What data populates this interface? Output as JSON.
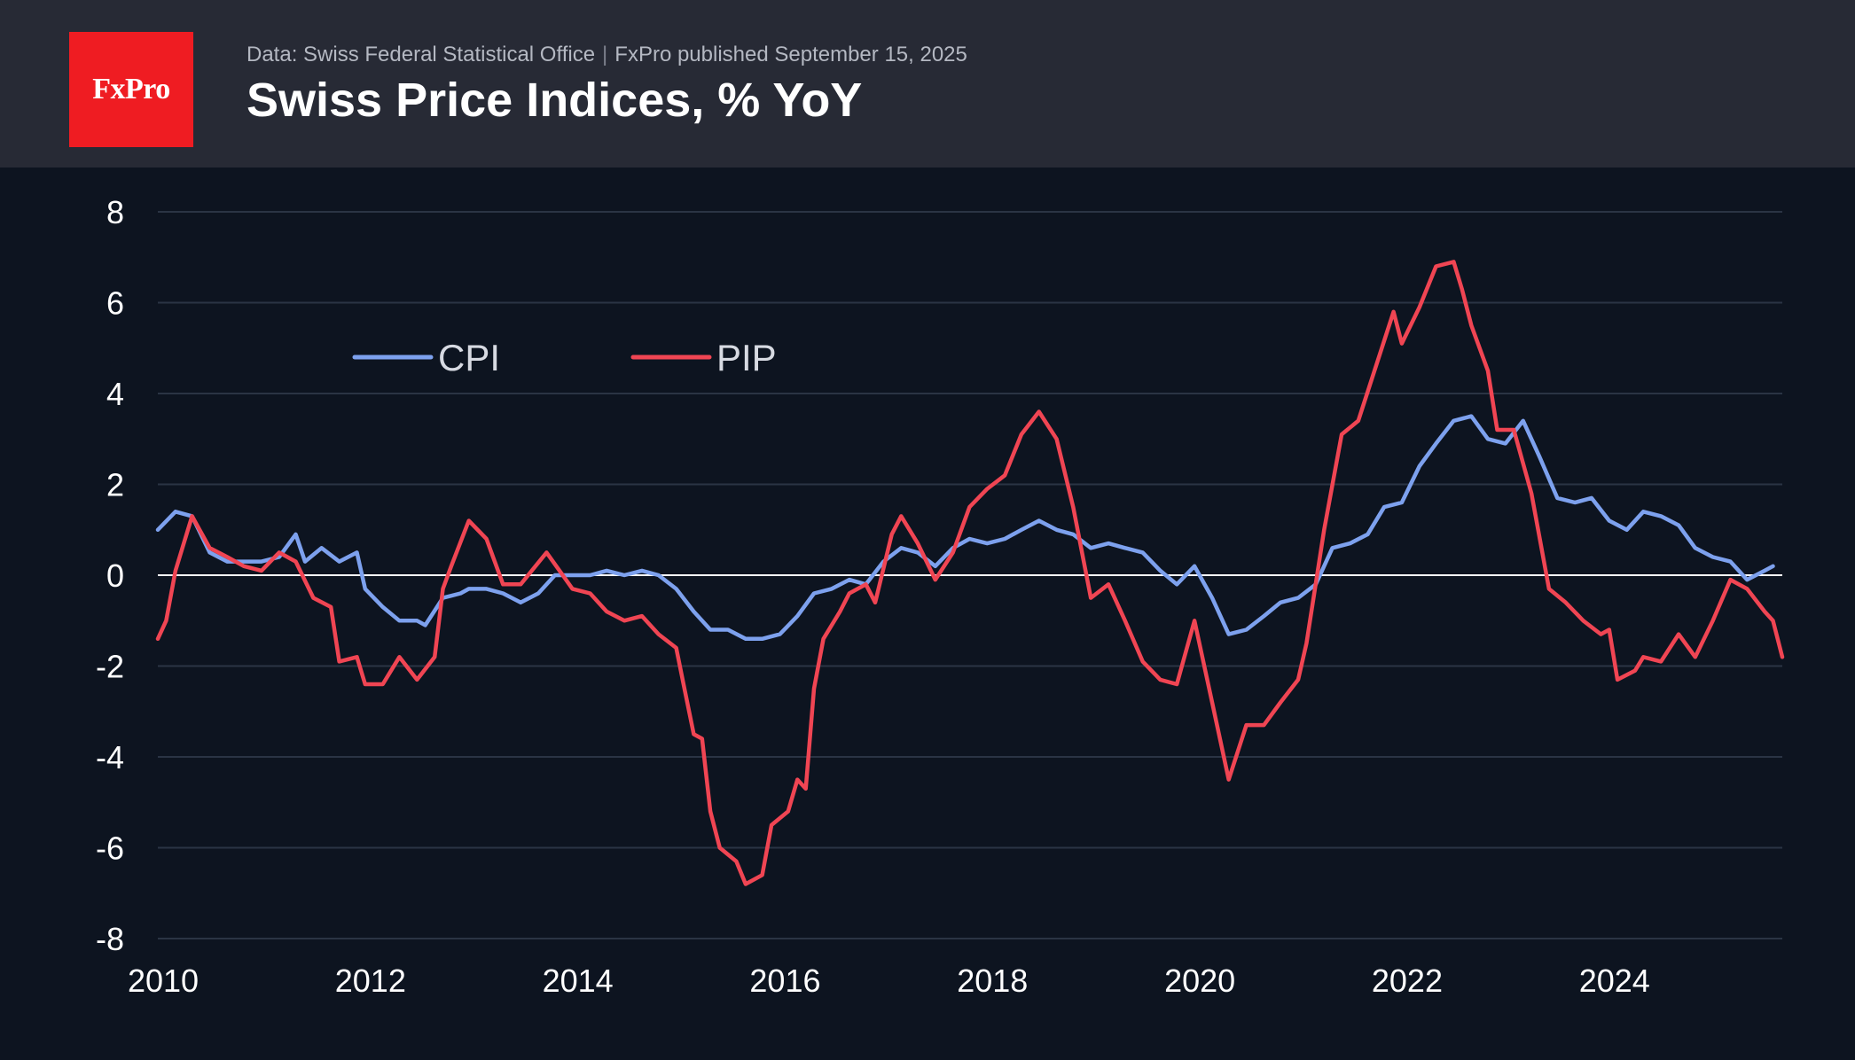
{
  "brand": {
    "logo_text": "FxPro",
    "accent": "#ef1c22"
  },
  "header": {
    "source": "Data: Swiss Federal Statistical Office",
    "separator": "|",
    "published": "FxPro published September 15, 2025",
    "title": "Swiss Price Indices, % YoY"
  },
  "chart_data": {
    "type": "line",
    "title": "Swiss Price Indices, % YoY",
    "xlabel": "",
    "ylabel": "",
    "xlim": [
      2010.0,
      2025.67
    ],
    "ylim": [
      -8,
      8
    ],
    "x_ticks": [
      "2010",
      "2012",
      "2014",
      "2016",
      "2018",
      "2020",
      "2022",
      "2024"
    ],
    "y_ticks": [
      "8",
      "6",
      "4",
      "2",
      "0",
      "-2",
      "-4",
      "-6",
      "-8"
    ],
    "grid": true,
    "zero_line": true,
    "legend_position": "top-left",
    "series": [
      {
        "name": "CPI",
        "color": "#7da1ee",
        "points": [
          [
            2010.0,
            1.0
          ],
          [
            2010.17,
            1.4
          ],
          [
            2010.33,
            1.3
          ],
          [
            2010.5,
            0.5
          ],
          [
            2010.67,
            0.3
          ],
          [
            2010.83,
            0.3
          ],
          [
            2011.0,
            0.3
          ],
          [
            2011.17,
            0.4
          ],
          [
            2011.33,
            0.9
          ],
          [
            2011.42,
            0.3
          ],
          [
            2011.58,
            0.6
          ],
          [
            2011.75,
            0.3
          ],
          [
            2011.92,
            0.5
          ],
          [
            2012.0,
            -0.3
          ],
          [
            2012.17,
            -0.7
          ],
          [
            2012.33,
            -1.0
          ],
          [
            2012.5,
            -1.0
          ],
          [
            2012.58,
            -1.1
          ],
          [
            2012.75,
            -0.5
          ],
          [
            2012.92,
            -0.4
          ],
          [
            2013.0,
            -0.3
          ],
          [
            2013.17,
            -0.3
          ],
          [
            2013.33,
            -0.4
          ],
          [
            2013.5,
            -0.6
          ],
          [
            2013.67,
            -0.4
          ],
          [
            2013.83,
            0.0
          ],
          [
            2014.0,
            0.0
          ],
          [
            2014.17,
            0.0
          ],
          [
            2014.33,
            0.1
          ],
          [
            2014.5,
            0.0
          ],
          [
            2014.67,
            0.1
          ],
          [
            2014.83,
            0.0
          ],
          [
            2015.0,
            -0.3
          ],
          [
            2015.17,
            -0.8
          ],
          [
            2015.33,
            -1.2
          ],
          [
            2015.5,
            -1.2
          ],
          [
            2015.67,
            -1.4
          ],
          [
            2015.83,
            -1.4
          ],
          [
            2016.0,
            -1.3
          ],
          [
            2016.17,
            -0.9
          ],
          [
            2016.33,
            -0.4
          ],
          [
            2016.5,
            -0.3
          ],
          [
            2016.67,
            -0.1
          ],
          [
            2016.83,
            -0.2
          ],
          [
            2017.0,
            0.3
          ],
          [
            2017.17,
            0.6
          ],
          [
            2017.33,
            0.5
          ],
          [
            2017.5,
            0.2
          ],
          [
            2017.67,
            0.6
          ],
          [
            2017.83,
            0.8
          ],
          [
            2018.0,
            0.7
          ],
          [
            2018.17,
            0.8
          ],
          [
            2018.33,
            1.0
          ],
          [
            2018.5,
            1.2
          ],
          [
            2018.67,
            1.0
          ],
          [
            2018.83,
            0.9
          ],
          [
            2019.0,
            0.6
          ],
          [
            2019.17,
            0.7
          ],
          [
            2019.33,
            0.6
          ],
          [
            2019.5,
            0.5
          ],
          [
            2019.67,
            0.1
          ],
          [
            2019.83,
            -0.2
          ],
          [
            2020.0,
            0.2
          ],
          [
            2020.17,
            -0.5
          ],
          [
            2020.33,
            -1.3
          ],
          [
            2020.5,
            -1.2
          ],
          [
            2020.67,
            -0.9
          ],
          [
            2020.83,
            -0.6
          ],
          [
            2021.0,
            -0.5
          ],
          [
            2021.17,
            -0.2
          ],
          [
            2021.33,
            0.6
          ],
          [
            2021.5,
            0.7
          ],
          [
            2021.67,
            0.9
          ],
          [
            2021.83,
            1.5
          ],
          [
            2022.0,
            1.6
          ],
          [
            2022.17,
            2.4
          ],
          [
            2022.33,
            2.9
          ],
          [
            2022.5,
            3.4
          ],
          [
            2022.67,
            3.5
          ],
          [
            2022.83,
            3.0
          ],
          [
            2023.0,
            2.9
          ],
          [
            2023.17,
            3.4
          ],
          [
            2023.33,
            2.6
          ],
          [
            2023.5,
            1.7
          ],
          [
            2023.67,
            1.6
          ],
          [
            2023.83,
            1.7
          ],
          [
            2024.0,
            1.2
          ],
          [
            2024.17,
            1.0
          ],
          [
            2024.33,
            1.4
          ],
          [
            2024.5,
            1.3
          ],
          [
            2024.67,
            1.1
          ],
          [
            2024.83,
            0.6
          ],
          [
            2025.0,
            0.4
          ],
          [
            2025.17,
            0.3
          ],
          [
            2025.33,
            -0.1
          ],
          [
            2025.5,
            0.1
          ],
          [
            2025.58,
            0.2
          ]
        ]
      },
      {
        "name": "PIP",
        "color": "#f04553",
        "points": [
          [
            2010.0,
            -1.4
          ],
          [
            2010.08,
            -1.0
          ],
          [
            2010.17,
            0.1
          ],
          [
            2010.33,
            1.3
          ],
          [
            2010.5,
            0.6
          ],
          [
            2010.67,
            0.4
          ],
          [
            2010.83,
            0.2
          ],
          [
            2011.0,
            0.1
          ],
          [
            2011.17,
            0.5
          ],
          [
            2011.33,
            0.3
          ],
          [
            2011.5,
            -0.5
          ],
          [
            2011.67,
            -0.7
          ],
          [
            2011.75,
            -1.9
          ],
          [
            2011.92,
            -1.8
          ],
          [
            2012.0,
            -2.4
          ],
          [
            2012.17,
            -2.4
          ],
          [
            2012.33,
            -1.8
          ],
          [
            2012.5,
            -2.3
          ],
          [
            2012.67,
            -1.8
          ],
          [
            2012.75,
            -0.3
          ],
          [
            2012.83,
            0.2
          ],
          [
            2013.0,
            1.2
          ],
          [
            2013.17,
            0.8
          ],
          [
            2013.33,
            -0.2
          ],
          [
            2013.5,
            -0.2
          ],
          [
            2013.75,
            0.5
          ],
          [
            2014.0,
            -0.3
          ],
          [
            2014.17,
            -0.4
          ],
          [
            2014.33,
            -0.8
          ],
          [
            2014.5,
            -1.0
          ],
          [
            2014.67,
            -0.9
          ],
          [
            2014.83,
            -1.3
          ],
          [
            2015.0,
            -1.6
          ],
          [
            2015.08,
            -2.5
          ],
          [
            2015.17,
            -3.5
          ],
          [
            2015.25,
            -3.6
          ],
          [
            2015.33,
            -5.2
          ],
          [
            2015.42,
            -6.0
          ],
          [
            2015.58,
            -6.3
          ],
          [
            2015.67,
            -6.8
          ],
          [
            2015.83,
            -6.6
          ],
          [
            2015.92,
            -5.5
          ],
          [
            2016.08,
            -5.2
          ],
          [
            2016.17,
            -4.5
          ],
          [
            2016.25,
            -4.7
          ],
          [
            2016.33,
            -2.5
          ],
          [
            2016.42,
            -1.4
          ],
          [
            2016.58,
            -0.8
          ],
          [
            2016.67,
            -0.4
          ],
          [
            2016.83,
            -0.2
          ],
          [
            2016.92,
            -0.6
          ],
          [
            2017.08,
            0.9
          ],
          [
            2017.17,
            1.3
          ],
          [
            2017.33,
            0.7
          ],
          [
            2017.5,
            -0.1
          ],
          [
            2017.67,
            0.5
          ],
          [
            2017.83,
            1.5
          ],
          [
            2018.0,
            1.9
          ],
          [
            2018.17,
            2.2
          ],
          [
            2018.33,
            3.1
          ],
          [
            2018.5,
            3.6
          ],
          [
            2018.67,
            3.0
          ],
          [
            2018.83,
            1.5
          ],
          [
            2019.0,
            -0.5
          ],
          [
            2019.17,
            -0.2
          ],
          [
            2019.33,
            -1.0
          ],
          [
            2019.5,
            -1.9
          ],
          [
            2019.67,
            -2.3
          ],
          [
            2019.83,
            -2.4
          ],
          [
            2020.0,
            -1.0
          ],
          [
            2020.17,
            -2.8
          ],
          [
            2020.33,
            -4.5
          ],
          [
            2020.5,
            -3.3
          ],
          [
            2020.67,
            -3.3
          ],
          [
            2020.83,
            -2.8
          ],
          [
            2021.0,
            -2.3
          ],
          [
            2021.08,
            -1.5
          ],
          [
            2021.25,
            1.0
          ],
          [
            2021.42,
            3.1
          ],
          [
            2021.58,
            3.4
          ],
          [
            2021.75,
            4.6
          ],
          [
            2021.92,
            5.8
          ],
          [
            2022.0,
            5.1
          ],
          [
            2022.17,
            5.9
          ],
          [
            2022.33,
            6.8
          ],
          [
            2022.5,
            6.9
          ],
          [
            2022.58,
            6.3
          ],
          [
            2022.67,
            5.5
          ],
          [
            2022.83,
            4.5
          ],
          [
            2022.92,
            3.2
          ],
          [
            2023.08,
            3.2
          ],
          [
            2023.25,
            1.8
          ],
          [
            2023.42,
            -0.3
          ],
          [
            2023.58,
            -0.6
          ],
          [
            2023.75,
            -1.0
          ],
          [
            2023.92,
            -1.3
          ],
          [
            2024.0,
            -1.2
          ],
          [
            2024.08,
            -2.3
          ],
          [
            2024.25,
            -2.1
          ],
          [
            2024.33,
            -1.8
          ],
          [
            2024.5,
            -1.9
          ],
          [
            2024.67,
            -1.3
          ],
          [
            2024.83,
            -1.8
          ],
          [
            2025.0,
            -1.0
          ],
          [
            2025.17,
            -0.1
          ],
          [
            2025.33,
            -0.3
          ],
          [
            2025.5,
            -0.8
          ],
          [
            2025.58,
            -1.0
          ],
          [
            2025.67,
            -1.8
          ]
        ]
      }
    ]
  }
}
